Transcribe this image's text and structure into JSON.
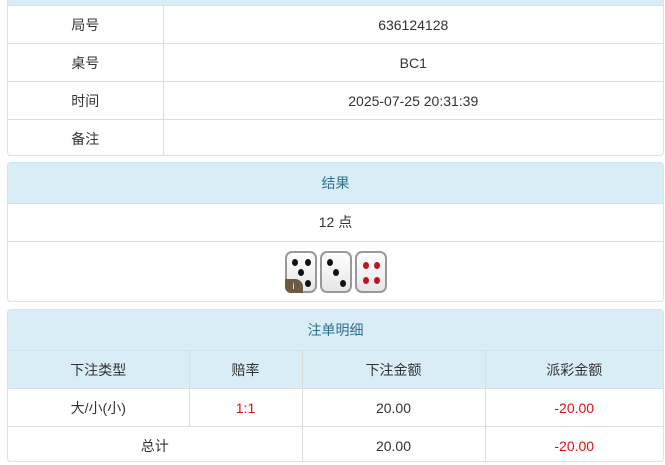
{
  "info": {
    "rows": [
      {
        "label": "局号",
        "value": "636124128"
      },
      {
        "label": "桌号",
        "value": "BC1"
      },
      {
        "label": "时间",
        "value": "2025-07-25 20:31:39"
      },
      {
        "label": "备注",
        "value": ""
      }
    ]
  },
  "result": {
    "title": "结果",
    "points": "12 点",
    "dice": [
      5,
      3,
      4
    ],
    "info_badge": "i"
  },
  "bets": {
    "title": "注单明细",
    "headers": [
      "下注类型",
      "赔率",
      "下注金额",
      "派彩金额"
    ],
    "rows": [
      {
        "type": "大/小(小)",
        "odds": "1:1",
        "amount": "20.00",
        "payout": "-20.00"
      }
    ],
    "total": {
      "label": "总计",
      "amount": "20.00",
      "payout": "-20.00"
    }
  },
  "colors": {
    "header_bg": "#d9edf7",
    "header_text": "#31708f",
    "negative": "#e01010",
    "red_pips": "#c0141c"
  }
}
